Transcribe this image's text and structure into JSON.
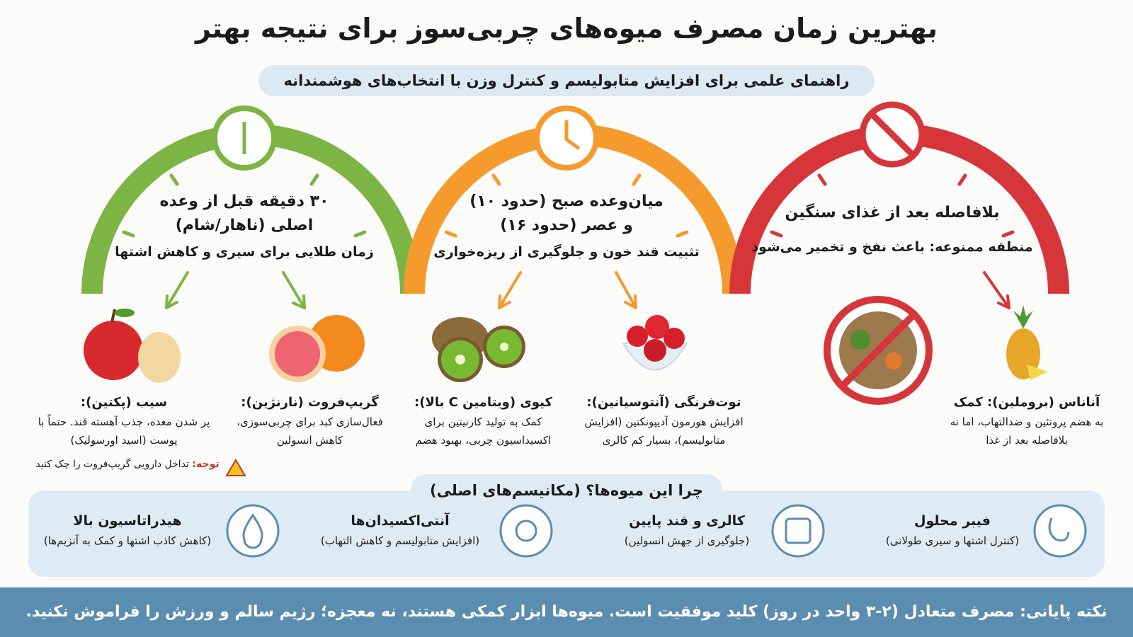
{
  "header": {
    "title": "بهترین زمان مصرف میوه‌های چربی‌سوز برای نتیجه بهتر",
    "subtitle": "راهنمای علمی برای افزایش متابولیسم و کنترل وزن با انتخاب‌های هوشمندانه"
  },
  "gauges": [
    {
      "title": "۳۰ دقیقه قبل از وعده اصلی (ناهار/شام)",
      "description": "زمان طلایی برای سیری و کاهش اشتها",
      "fruits": [
        {
          "name": "سیب (پکتین):",
          "text": "پر شدن معده، جذب آهسته قند. حتماً با پوست (اسید اورسولیک)"
        },
        {
          "name": "گریپ‌فروت (نارنژین):",
          "text": "فعال‌سازی کبد برای چربی‌سوزی، کاهش انسولین"
        }
      ],
      "warning": {
        "label": "توجه:",
        "text": "تداخل دارویی گریپ‌فروت را چک کنید"
      }
    },
    {
      "title": "میان‌وعده صبح (حدود ۱۰) و عصر (حدود ۱۶)",
      "description": "تثبیت قند خون و جلوگیری از ریزه‌خواری",
      "fruits": [
        {
          "name": "کیوی (ویتامین C بالا):",
          "text": "کمک به تولید کارنیتین برای اکسیداسیون چربی، بهبود هضم"
        },
        {
          "name": "توت‌فرنگی (آنتوسیانین):",
          "text": "افزایش هورمون آدیپونکتین (افزایش متابولیسم)، بسیار کم کالری"
        }
      ]
    },
    {
      "title": "بلافاصله بعد از غذای سنگین",
      "description": "منطقه ممنوعه: باعث نفخ و تخمیر می‌شود",
      "fruits": [
        {
          "name": "آناناس (بروملین): کمک",
          "text": "به هضم پروتئین و ضدالتهاب، اما نه بلافاصله بعد از غذا"
        }
      ]
    }
  ],
  "mechanisms": {
    "title": "چرا این میوه‌ها؟ (مکانیسم‌های اصلی)",
    "items": [
      {
        "title": "هیدراتاسیون بالا",
        "text": "(کاهش کاذب اشتها و کمک به آنزیم‌ها)"
      },
      {
        "title": "آنتی‌اکسیدان‌ها",
        "text": "(افزایش متابولیسم و کاهش التهاب)"
      },
      {
        "title": "کالری و قند پایین",
        "text": "(جلوگیری از جهش انسولین)"
      },
      {
        "title": "فیبر محلول",
        "text": "(کنترل اشتها و سیری طولانی)"
      }
    ]
  },
  "footer": {
    "text": "نکته پایانی: مصرف متعادل (۲-۳ واحد در روز) کلید موفقیت است. میوه‌ها ابزار کمکی هستند، نه معجزه؛ رژیم سالم و ورزش را فراموش نکنید."
  }
}
